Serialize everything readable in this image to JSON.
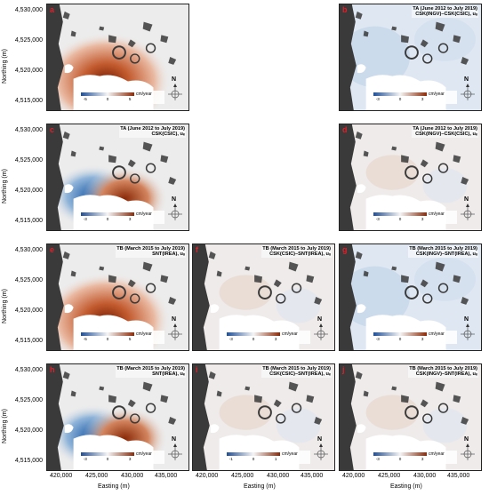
{
  "y_axis": {
    "title": "Northing (m)",
    "ticks": [
      "4,530,000",
      "4,525,000",
      "4,520,000",
      "4,515,000"
    ]
  },
  "x_axis": {
    "title": "Easting (m)",
    "ticks": [
      "420,000",
      "425,000",
      "430,000",
      "435,000"
    ]
  },
  "panels": [
    {
      "id": "a",
      "label": "a",
      "title_l1": "",
      "title_l2": "",
      "legend_ticks": [
        "-5",
        "0",
        "5"
      ],
      "unit": "cm/year",
      "pattern": "uplift-strong"
    },
    {
      "id": "b",
      "label": "b",
      "title_l1": "TA (June 2012 to July 2019)",
      "title_l2": "CSK(INGV)–CSK(CSIC), uᵤ",
      "legend_ticks": [
        "-3",
        "0",
        "3"
      ],
      "unit": "cm/year",
      "pattern": "diff-blue"
    },
    {
      "id": "c",
      "label": "c",
      "title_l1": "TA (June 2012 to July 2019)",
      "title_l2": "CSK(CSIC), uₑ",
      "legend_ticks": [
        "-3",
        "0",
        "3"
      ],
      "unit": "cm/year",
      "pattern": "ew"
    },
    {
      "id": "d",
      "label": "d",
      "title_l1": "TA (June 2012 to July 2019)",
      "title_l2": "CSK(INGV)–CSK(CSIC), uₑ",
      "legend_ticks": [
        "-3",
        "0",
        "3"
      ],
      "unit": "cm/year",
      "pattern": "diff-light"
    },
    {
      "id": "e",
      "label": "e",
      "title_l1": "TB (March 2015 to July 2019)",
      "title_l2": "SNT(IREA), uᵤ",
      "legend_ticks": [
        "-5",
        "0",
        "5"
      ],
      "unit": "cm/year",
      "pattern": "uplift-strong"
    },
    {
      "id": "f",
      "label": "f",
      "title_l1": "TB (March 2015 to July 2019)",
      "title_l2": "CSK(CSIC)–SNT(IREA), uᵤ",
      "legend_ticks": [
        "-3",
        "0",
        "3"
      ],
      "unit": "cm/year",
      "pattern": "diff-light"
    },
    {
      "id": "g",
      "label": "g",
      "title_l1": "TB (March 2015 to July 2019)",
      "title_l2": "CSK(INGV)–SNT(IREA), uᵤ",
      "legend_ticks": [
        "-3",
        "0",
        "3"
      ],
      "unit": "cm/year",
      "pattern": "diff-blue"
    },
    {
      "id": "h",
      "label": "h",
      "title_l1": "TB (March 2015 to July 2019)",
      "title_l2": "SNT(IREA), uₑ",
      "legend_ticks": [
        "-3",
        "0",
        "3"
      ],
      "unit": "cm/year",
      "pattern": "ew"
    },
    {
      "id": "i",
      "label": "i",
      "title_l1": "TB (March 2015 to July 2019)",
      "title_l2": "CSK(CSIC)–SNT(IREA), uₑ",
      "legend_ticks": [
        "-1",
        "0",
        "1"
      ],
      "unit": "cm/year",
      "pattern": "diff-light"
    },
    {
      "id": "j",
      "label": "j",
      "title_l1": "TB (March 2015 to July 2019)",
      "title_l2": "CSK(INGV)–SNT(IREA), uₑ",
      "legend_ticks": [
        "-3",
        "0",
        "3"
      ],
      "unit": "cm/year",
      "pattern": "diff-light"
    }
  ],
  "north_label": "N",
  "colors": {
    "blue": "#2a5fa8",
    "red": "#a8360f",
    "neutral": "#ececec",
    "land": "#3a3a3a",
    "sea": "#ffffff"
  }
}
